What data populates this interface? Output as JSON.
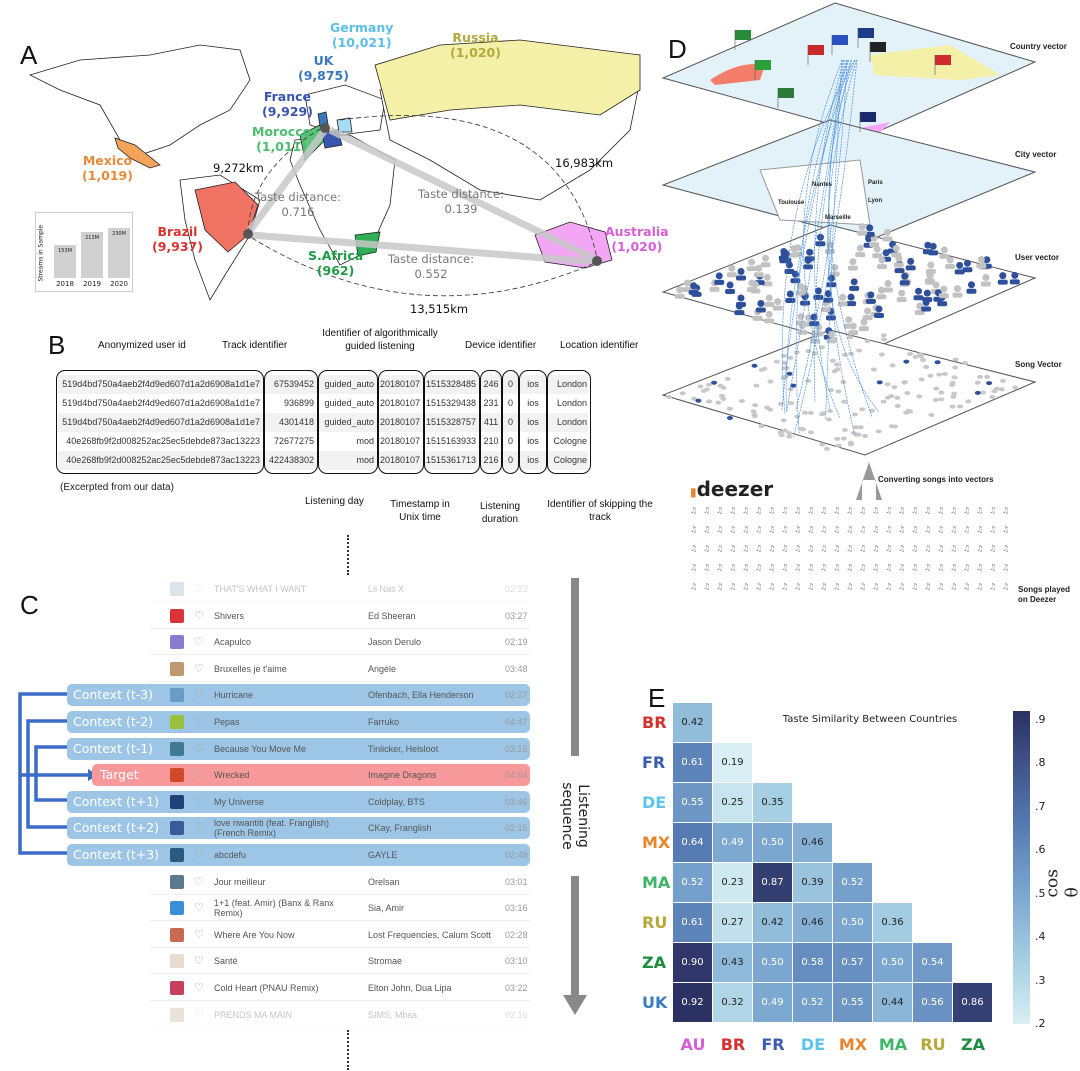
{
  "panels": {
    "a": "A",
    "b": "B",
    "c": "C",
    "d": "D",
    "e": "E"
  },
  "map": {
    "countries": [
      {
        "name": "Germany",
        "count": "(10,021)",
        "color": "#5bbfe8"
      },
      {
        "name": "UK",
        "count": "(9,875)",
        "color": "#3a78bd"
      },
      {
        "name": "France",
        "count": "(9,929)",
        "color": "#3a55b0"
      },
      {
        "name": "Morocco",
        "count": "(1,011)",
        "color": "#4cbc6e"
      },
      {
        "name": "Mexico",
        "count": "(1,019)",
        "color": "#e8893a"
      },
      {
        "name": "Brazil",
        "count": "(9,937)",
        "color": "#d9342f"
      },
      {
        "name": "S.Africa",
        "count": "(962)",
        "color": "#1f9a45"
      },
      {
        "name": "Russia",
        "count": "(1,020)",
        "color": "#b3a83e"
      },
      {
        "name": "Australia",
        "count": "(1,020)",
        "color": "#d85fd8"
      }
    ],
    "distances": [
      "9,272km",
      "16,983km",
      "13,515km"
    ],
    "taste": [
      {
        "label": "Taste distance:",
        "value": "0.716"
      },
      {
        "label": "Taste distance:",
        "value": "0.139"
      },
      {
        "label": "Taste distance:",
        "value": "0.552"
      }
    ],
    "inset": {
      "ylabel": "Streams in Sample",
      "bars": [
        {
          "year": "2018",
          "label": "153M",
          "value": 153
        },
        {
          "year": "2019",
          "label": "213M",
          "value": 213
        },
        {
          "year": "2020",
          "label": "230M",
          "value": 230
        }
      ]
    }
  },
  "table": {
    "headers": {
      "user": "Anonymized user id",
      "track": "Track identifier",
      "guided": "Identifier of algorithmically guided listening",
      "device": "Device identifier",
      "location": "Location identifier",
      "day": "Listening day",
      "timestamp": "Timestamp in Unix time",
      "duration": "Listening duration",
      "skip": "Identifier of skipping the track"
    },
    "rows": [
      [
        "519d4bd750a4aeb2f4d9ed607d1a2d6908a1d1e7",
        "67539452",
        "guided_auto",
        "20180107",
        "1515328485",
        "246",
        "0",
        "ios",
        "London"
      ],
      [
        "519d4bd750a4aeb2f4d9ed607d1a2d6908a1d1e7",
        "936899",
        "guided_auto",
        "20180107",
        "1515329438",
        "231",
        "0",
        "ios",
        "London"
      ],
      [
        "519d4bd750a4aeb2f4d9ed607d1a2d6908a1d1e7",
        "4301418",
        "guided_auto",
        "20180107",
        "1515328757",
        "411",
        "0",
        "ios",
        "London"
      ],
      [
        "40e268fb9f2d008252ac25ec5debde873ac13223",
        "72677275",
        "mod",
        "20180107",
        "1515163933",
        "210",
        "0",
        "ios",
        "Cologne"
      ],
      [
        "40e268fb9f2d008252ac25ec5debde873ac13223",
        "422438302",
        "mod",
        "20180107",
        "1515361713",
        "216",
        "0",
        "ios",
        "Cologne"
      ]
    ],
    "note": "(Excerpted from our data)"
  },
  "sequence": {
    "axis": "Listening sequence",
    "tracks": [
      {
        "title": "THAT'S WHAT I WANT",
        "artist": "Lil Nas X",
        "dur": "02:23",
        "art": "#9fb5c8"
      },
      {
        "title": "Shivers",
        "artist": "Ed Sheeran",
        "dur": "03:27",
        "art": "#d8343a"
      },
      {
        "title": "Acapulco",
        "artist": "Jason Derulo",
        "dur": "02:19",
        "art": "#8a7ad0"
      },
      {
        "title": "Bruxelles je t'aime",
        "artist": "Angèle",
        "dur": "03:48",
        "art": "#c09870"
      },
      {
        "title": "Hurricane",
        "artist": "Ofenbach, Ella Henderson",
        "dur": "02:27",
        "art": "#6a9cc8",
        "ctx": "Context (t-3)"
      },
      {
        "title": "Pepas",
        "artist": "Farruko",
        "dur": "04:47",
        "art": "#9ac040",
        "ctx": "Context (t-2)"
      },
      {
        "title": "Because You Move Me",
        "artist": "Tinlicker, Helsloot",
        "dur": "03:16",
        "art": "#3f7a90",
        "ctx": "Context (t-1)"
      },
      {
        "title": "Wrecked",
        "artist": "Imagine Dragons",
        "dur": "04:04",
        "art": "#d24a2a",
        "ctx": "Target"
      },
      {
        "title": "My Universe",
        "artist": "Coldplay, BTS",
        "dur": "03:46",
        "art": "#22407a",
        "ctx": "Context (t+1)"
      },
      {
        "title": "love nwantiti (feat. Franglish) (French Remix)",
        "artist": "CKay, Franglish",
        "dur": "02:15",
        "art": "#3a5a9a",
        "ctx": "Context (t+2)"
      },
      {
        "title": "abcdefu",
        "artist": "GAYLE",
        "dur": "02:48",
        "art": "#2a5a80",
        "ctx": "Context (t+3)"
      },
      {
        "title": "Jour meilleur",
        "artist": "Orelsan",
        "dur": "03:01",
        "art": "#5a7a90"
      },
      {
        "title": "1+1 (feat. Amir) (Banx & Ranx Remix)",
        "artist": "Sia, Amir",
        "dur": "03:16",
        "art": "#3a90d8"
      },
      {
        "title": "Where Are You Now",
        "artist": "Lost Frequencies, Calum Scott",
        "dur": "02:28",
        "art": "#c86a50"
      },
      {
        "title": "Santé",
        "artist": "Stromae",
        "dur": "03:10",
        "art": "#e8dcd0"
      },
      {
        "title": "Cold Heart (PNAU Remix)",
        "artist": "Elton John, Dua Lipa",
        "dur": "03:22",
        "art": "#c84060"
      },
      {
        "title": "PRENDS MA MAIN",
        "artist": "SIMS, Mbsa",
        "dur": "02:16",
        "art": "#c0b090"
      }
    ]
  },
  "layers": {
    "labels": [
      "Country vector",
      "City vector",
      "User vector",
      "Song Vector"
    ],
    "cities": [
      "Nantes",
      "Paris",
      "Toulouse",
      "Lyon",
      "Marseille"
    ],
    "brand": "deezer",
    "convert": "Converting songs into vectors",
    "played": "Songs played on Deezer"
  },
  "chart_data": {
    "type": "heatmap",
    "title": "Taste Similarity Between Countries",
    "rows": [
      "BR",
      "FR",
      "DE",
      "MX",
      "MA",
      "RU",
      "ZA",
      "UK"
    ],
    "columns": [
      "AU",
      "BR",
      "FR",
      "DE",
      "MX",
      "MA",
      "RU",
      "ZA"
    ],
    "values": [
      [
        0.42
      ],
      [
        0.61,
        0.19
      ],
      [
        0.55,
        0.25,
        0.35
      ],
      [
        0.64,
        0.49,
        0.5,
        0.46
      ],
      [
        0.52,
        0.23,
        0.87,
        0.39,
        0.52
      ],
      [
        0.61,
        0.27,
        0.42,
        0.46,
        0.5,
        0.36
      ],
      [
        0.9,
        0.43,
        0.5,
        0.58,
        0.57,
        0.5,
        0.54
      ],
      [
        0.92,
        0.32,
        0.49,
        0.52,
        0.55,
        0.44,
        0.56,
        0.86
      ]
    ],
    "colorbar": {
      "label": "cos θ",
      "ticks": [
        ".9",
        ".8",
        ".7",
        ".6",
        ".5",
        ".4",
        ".3",
        ".2"
      ],
      "range": [
        0.2,
        0.92
      ],
      "low_color": "#d9eff3",
      "high_color": "#2c3163"
    },
    "label_colors": {
      "AU": "#d65fd6",
      "BR": "#d4312f",
      "FR": "#3a5db0",
      "DE": "#5bc4e8",
      "MX": "#e8862f",
      "MA": "#3fb56a",
      "RU": "#b5a838",
      "ZA": "#1e8c3e",
      "UK": "#3a7ec0"
    }
  }
}
